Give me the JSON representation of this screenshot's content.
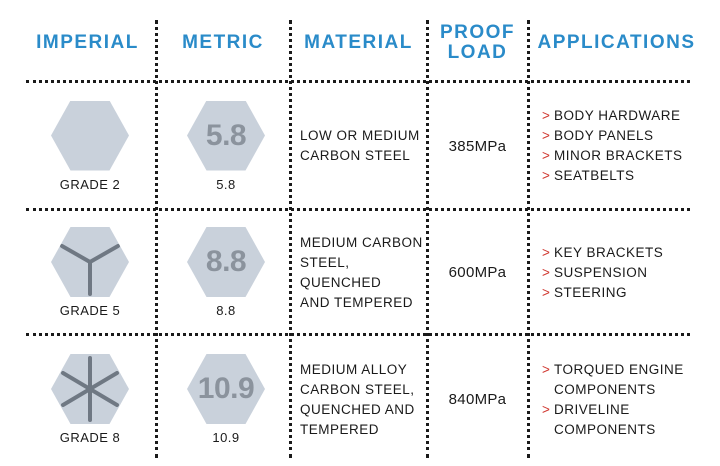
{
  "headers": {
    "imperial": "IMPERIAL",
    "metric": "METRIC",
    "material": "MATERIAL",
    "proof_load_line1": "PROOF",
    "proof_load_line2": "LOAD",
    "applications": "APPLICATIONS"
  },
  "rows": [
    {
      "imperial_grade": "GRADE 2",
      "imperial_icon": "hex-no-marks-icon",
      "metric_stamp": "5.8",
      "metric_label": "5.8",
      "material": [
        "LOW OR MEDIUM",
        "CARBON STEEL"
      ],
      "proof_load": "385MPa",
      "applications": [
        [
          "BODY HARDWARE"
        ],
        [
          "BODY PANELS"
        ],
        [
          "MINOR BRACKETS"
        ],
        [
          "SEATBELTS"
        ]
      ]
    },
    {
      "imperial_grade": "GRADE 5",
      "imperial_icon": "hex-three-radial-marks-icon",
      "metric_stamp": "8.8",
      "metric_label": "8.8",
      "material": [
        "MEDIUM CARBON",
        "STEEL, QUENCHED",
        "AND TEMPERED"
      ],
      "proof_load": "600MPa",
      "applications": [
        [
          "KEY BRACKETS"
        ],
        [
          "SUSPENSION"
        ],
        [
          "STEERING"
        ]
      ]
    },
    {
      "imperial_grade": "GRADE 8",
      "imperial_icon": "hex-six-radial-marks-icon",
      "metric_stamp": "10.9",
      "metric_label": "10.9",
      "material": [
        "MEDIUM ALLOY",
        "CARBON STEEL,",
        "QUENCHED AND",
        "TEMPERED"
      ],
      "proof_load": "840MPa",
      "applications": [
        [
          "TORQUED ENGINE",
          "COMPONENTS"
        ],
        [
          "DRIVELINE",
          "COMPONENTS"
        ]
      ]
    }
  ],
  "bullet_marker": ">",
  "colors": {
    "header": "#2a8bc9",
    "hex_fill": "#c9d1db",
    "hex_mark": "#6f7883",
    "metric_stamp_text": "#8b939d",
    "bullet": "#d0372f"
  }
}
